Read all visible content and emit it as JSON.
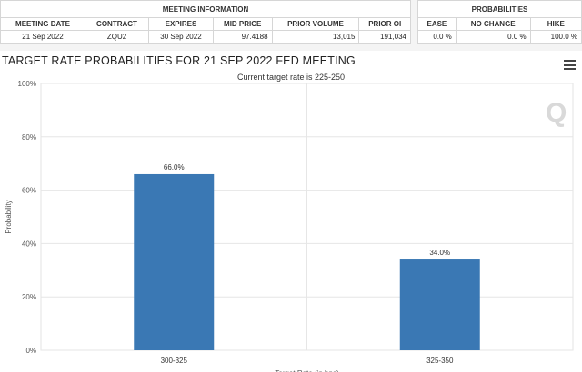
{
  "tables": {
    "meeting_info": {
      "group_label": "MEETING INFORMATION",
      "headers": [
        "MEETING DATE",
        "CONTRACT",
        "EXPIRES",
        "MID PRICE",
        "PRIOR VOLUME",
        "PRIOR OI"
      ],
      "row": [
        "21 Sep 2022",
        "ZQU2",
        "30 Sep 2022",
        "97.4188",
        "13,015",
        "191,034"
      ]
    },
    "probabilities": {
      "group_label": "PROBABILITIES",
      "headers": [
        "EASE",
        "NO CHANGE",
        "HIKE"
      ],
      "row": [
        "0.0 %",
        "0.0 %",
        "100.0 %"
      ]
    }
  },
  "menu_icon": "hamburger-menu-icon",
  "watermark_text": "Q",
  "chart_data": {
    "type": "bar",
    "title": "TARGET RATE PROBABILITIES FOR 21 SEP 2022 FED MEETING",
    "subtitle": "Current target rate is 225-250",
    "categories": [
      "300-325",
      "325-350"
    ],
    "values": [
      66.0,
      34.0
    ],
    "data_labels": [
      "66.0%",
      "34.0%"
    ],
    "ylabel": "Probability",
    "xlabel": "Target Rate (in bps)",
    "ylim": [
      0,
      100
    ],
    "y_ticks": [
      0,
      20,
      40,
      60,
      80,
      100
    ],
    "y_tick_labels": [
      "0%",
      "20%",
      "40%",
      "60%",
      "80%",
      "100%"
    ],
    "grid": true,
    "bar_color": "#3a78b4"
  }
}
